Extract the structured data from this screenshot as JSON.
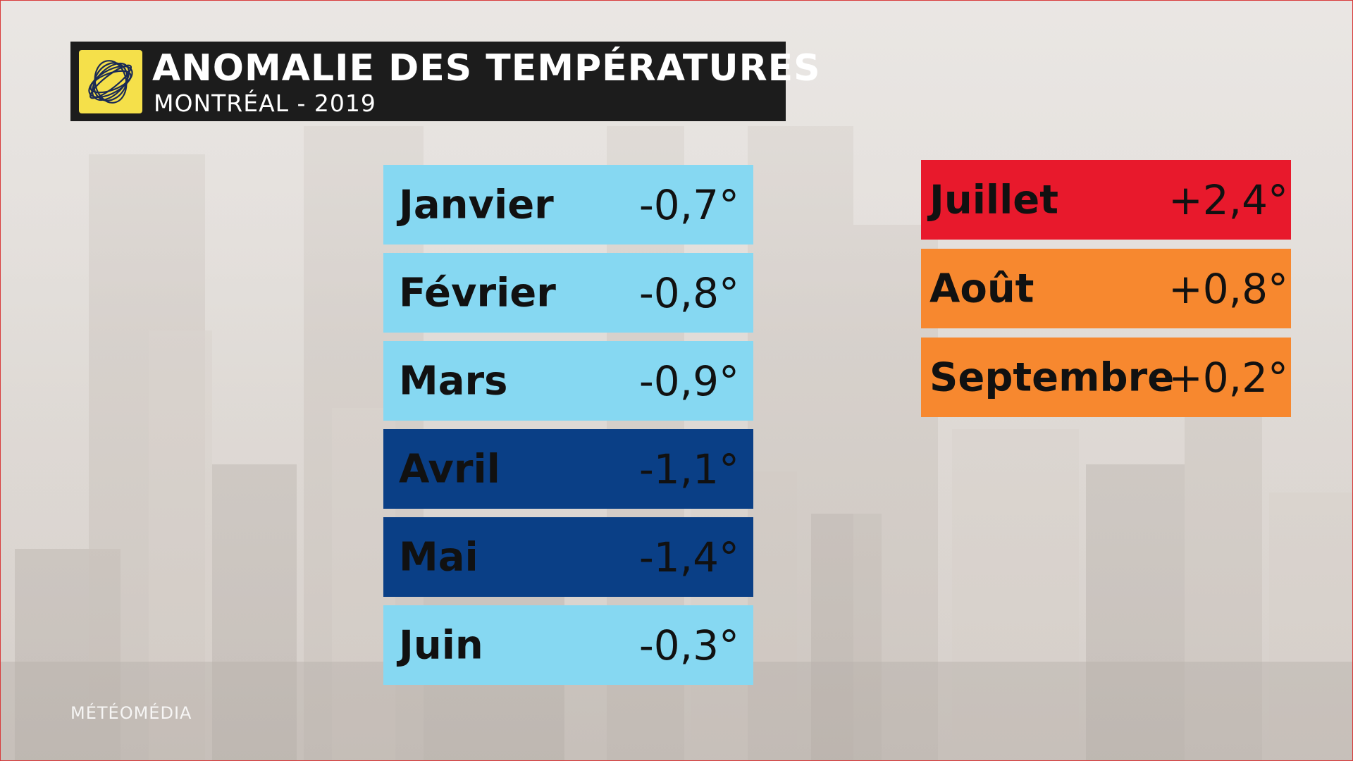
{
  "header": {
    "title": "ANOMALIE DES TEMPÉRATURES",
    "subtitle": "MONTRÉAL - 2019",
    "logo_icon": "meteomedia-swirl-logo",
    "logo_color": "#f5e04a"
  },
  "months_left": [
    {
      "month": "Janvier",
      "value": "-0,7°",
      "color": "#86d8f2"
    },
    {
      "month": "Février",
      "value": "-0,8°",
      "color": "#86d8f2"
    },
    {
      "month": "Mars",
      "value": "-0,9°",
      "color": "#86d8f2"
    },
    {
      "month": "Avril",
      "value": "-1,1°",
      "color": "#0a3f86"
    },
    {
      "month": "Mai",
      "value": "-1,4°",
      "color": "#0a3f86"
    },
    {
      "month": "Juin",
      "value": "-0,3°",
      "color": "#86d8f2"
    }
  ],
  "months_right": [
    {
      "month": "Juillet",
      "value": "+2,4°",
      "color": "#e8192c"
    },
    {
      "month": "Août",
      "value": "+0,8°",
      "color": "#f7882f"
    },
    {
      "month": "Septembre",
      "value": "+0,2°",
      "color": "#f7882f"
    }
  ],
  "watermark": "MÉTÉOMÉDIA"
}
